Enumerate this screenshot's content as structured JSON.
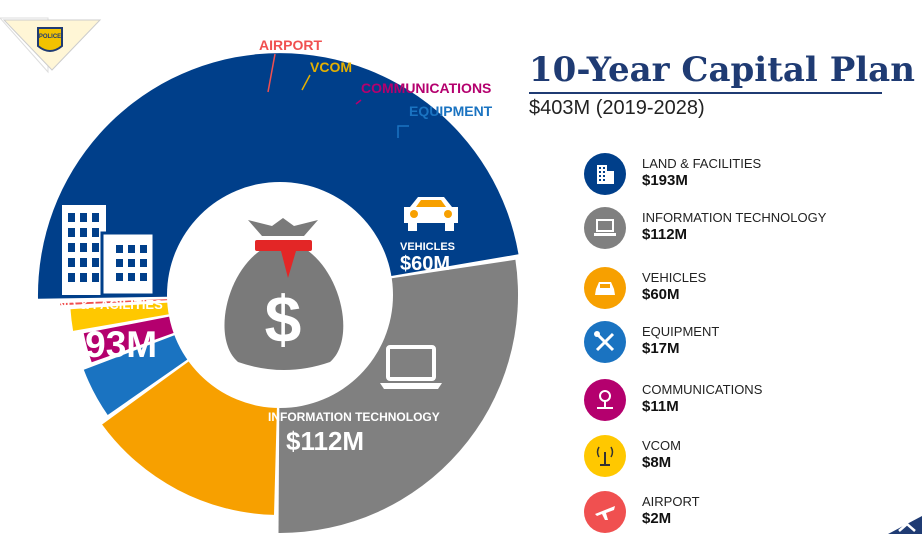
{
  "page": {
    "title": "10-Year Capital Plan",
    "subtitle": "$403M (2019-2028)",
    "logo_text": "POLICE"
  },
  "chart_data": {
    "type": "pie",
    "title": "10-Year Capital Plan",
    "subtitle": "$403M (2019-2028)",
    "total": 403,
    "unit": "$M",
    "center_icon": "money-bag-icon",
    "series": [
      {
        "name": "LAND & FACILITIES",
        "value_label": "$193M",
        "value": 193,
        "color": "#003f8a",
        "icon": "buildings-icon"
      },
      {
        "name": "INFORMATION TECHNOLOGY",
        "value_label": "$112M",
        "value": 112,
        "color": "#808080",
        "icon": "laptop-icon"
      },
      {
        "name": "VEHICLES",
        "value_label": "$60M",
        "value": 60,
        "color": "#f7a000",
        "icon": "car-icon"
      },
      {
        "name": "EQUIPMENT",
        "value_label": "$17M",
        "value": 17,
        "color": "#1a73c1",
        "icon": "tools-icon"
      },
      {
        "name": "COMMUNICATIONS",
        "value_label": "$11M",
        "value": 11,
        "color": "#b4006e",
        "icon": "communications-icon"
      },
      {
        "name": "VCOM",
        "value_label": "$8M",
        "value": 8,
        "color": "#ffc800",
        "icon": "antenna-icon"
      },
      {
        "name": "AIRPORT",
        "value_label": "$2M",
        "value": 2,
        "color": "#f05050",
        "icon": "airplane-icon"
      }
    ]
  }
}
